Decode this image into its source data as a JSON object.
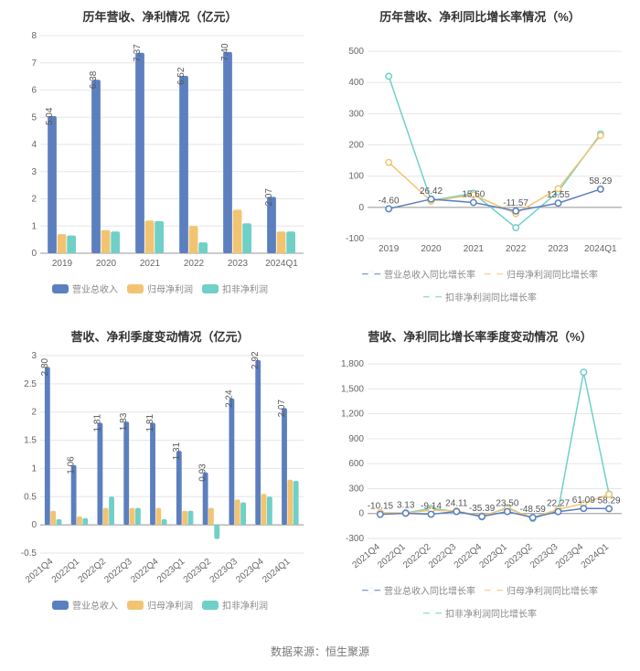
{
  "colors": {
    "revenue": "#5b7fbf",
    "netprofit": "#f2c471",
    "dednetprofit": "#6fd0c8",
    "grid": "#e6e6e6",
    "axis": "#999999",
    "text": "#666666",
    "title": "#333333",
    "bg": "#ffffff"
  },
  "footer": "数据来源：恒生聚源",
  "series_labels": {
    "revenue": "营业总收入",
    "netprofit": "归母净利润",
    "dednetprofit": "扣非净利润",
    "revenue_yoy": "营业总收入同比增长率",
    "netprofit_yoy": "归母净利润同比增长率",
    "dednetprofit_yoy": "扣非净利润同比增长率"
  },
  "panels": {
    "tl": {
      "title": "历年营收、净利情况（亿元）",
      "type": "bar",
      "categories": [
        "2019",
        "2020",
        "2021",
        "2022",
        "2023",
        "2024Q1"
      ],
      "series": {
        "revenue": [
          5.04,
          6.38,
          7.37,
          6.52,
          7.4,
          2.07
        ],
        "netprofit": [
          0.7,
          0.85,
          1.2,
          1.0,
          1.6,
          0.8
        ],
        "dednetprofit": [
          0.65,
          0.8,
          1.18,
          0.4,
          1.1,
          0.8
        ]
      },
      "value_labels": [
        "5.04",
        "6.38",
        "7.37",
        "6.52",
        "7.40",
        "2.07"
      ],
      "ylim": [
        0,
        8
      ],
      "ytick_step": 1,
      "bar_width": 0.22,
      "legend": [
        "revenue",
        "netprofit",
        "dednetprofit"
      ]
    },
    "tr": {
      "title": "历年营收、净利同比增长率情况（%）",
      "type": "line",
      "categories": [
        "2019",
        "2020",
        "2021",
        "2022",
        "2023",
        "2024Q1"
      ],
      "series": {
        "revenue_yoy": [
          -4.6,
          26.42,
          15.6,
          -11.57,
          13.55,
          58.29
        ],
        "netprofit_yoy": [
          144.0,
          20.0,
          40.0,
          -20.0,
          60.0,
          230.0
        ],
        "dednetprofit_yoy": [
          420.0,
          22.0,
          45.0,
          -65.0,
          50.0,
          235.0
        ]
      },
      "value_labels": [
        "-4.60",
        "26.42",
        "15.60",
        "-11.57",
        "13.55",
        "58.29"
      ],
      "ylim": [
        -100,
        550
      ],
      "yticks": [
        -100,
        0,
        100,
        200,
        300,
        400,
        500
      ],
      "legend": [
        "revenue_yoy",
        "netprofit_yoy",
        "dednetprofit_yoy"
      ]
    },
    "bl": {
      "title": "营收、净利季度变动情况（亿元）",
      "type": "bar",
      "categories": [
        "2021Q4",
        "2022Q1",
        "2022Q2",
        "2022Q3",
        "2022Q4",
        "2023Q1",
        "2023Q2",
        "2023Q3",
        "2023Q4",
        "2024Q1"
      ],
      "series": {
        "revenue": [
          2.8,
          1.06,
          1.81,
          1.83,
          1.81,
          1.31,
          0.93,
          2.24,
          2.92,
          2.07
        ],
        "netprofit": [
          0.25,
          0.15,
          0.3,
          0.3,
          0.3,
          0.25,
          0.3,
          0.45,
          0.55,
          0.8
        ],
        "dednetprofit": [
          0.1,
          0.12,
          0.5,
          0.3,
          0.1,
          0.25,
          -0.25,
          0.4,
          0.5,
          0.78
        ]
      },
      "value_labels": [
        "2.80",
        "1.06",
        "1.81",
        "1.83",
        "1.81",
        "1.31",
        "0.93",
        "2.24",
        "2.92",
        "2.07"
      ],
      "ylim": [
        -0.5,
        3
      ],
      "yticks": [
        -0.5,
        0,
        0.5,
        1,
        1.5,
        2,
        2.5,
        3
      ],
      "bar_width": 0.22,
      "legend": [
        "revenue",
        "netprofit",
        "dednetprofit"
      ],
      "rotate_x": true
    },
    "br": {
      "title": "营收、净利同比增长率季度变动情况（%）",
      "type": "line",
      "categories": [
        "2021Q4",
        "2022Q1",
        "2022Q2",
        "2022Q3",
        "2022Q4",
        "2023Q1",
        "2023Q2",
        "2023Q3",
        "2023Q4",
        "2024Q1"
      ],
      "series": {
        "revenue_yoy": [
          -10.15,
          3.13,
          -9.14,
          24.11,
          -35.39,
          23.5,
          -48.59,
          22.27,
          61.09,
          58.29
        ],
        "netprofit_yoy": [
          10.0,
          5.0,
          40.0,
          30.0,
          -30.0,
          60.0,
          -50.0,
          50.0,
          120.0,
          230.0
        ],
        "dednetprofit_yoy": [
          -5.0,
          8.0,
          60.0,
          25.0,
          -40.0,
          70.0,
          -60.0,
          40.0,
          1700.0,
          235.0
        ]
      },
      "value_labels": [
        "-10.15",
        "3.13",
        "-9.14",
        "24.11",
        "-35.39",
        "23.50",
        "-48.59",
        "22.27",
        "61.09",
        "58.29"
      ],
      "ylim": [
        -300,
        1900
      ],
      "yticks": [
        -300,
        0,
        300,
        600,
        900,
        1200,
        1500,
        1800
      ],
      "legend": [
        "revenue_yoy",
        "netprofit_yoy",
        "dednetprofit_yoy"
      ],
      "rotate_x": true
    }
  }
}
